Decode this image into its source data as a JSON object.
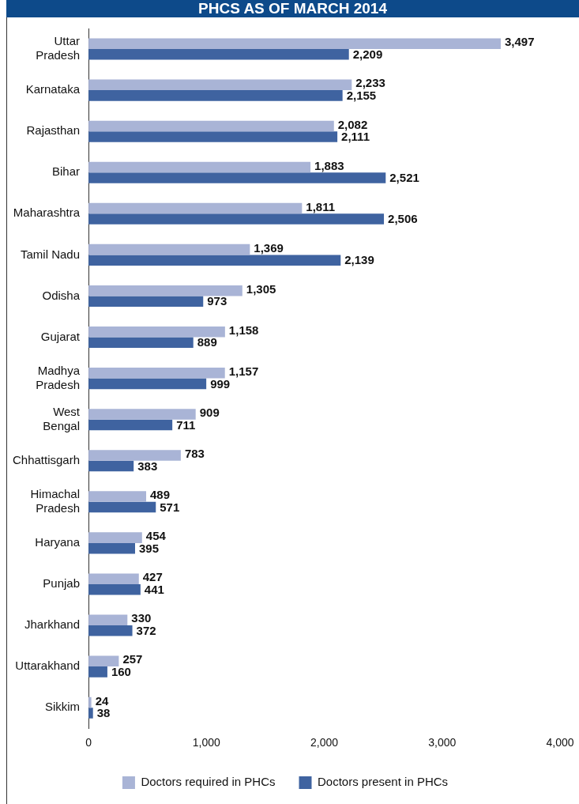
{
  "chart_data": {
    "type": "bar",
    "orientation": "horizontal",
    "title": "PHCS AS OF MARCH 2014",
    "categories": [
      "Uttar Pradesh",
      "Karnataka",
      "Rajasthan",
      "Bihar",
      "Maharashtra",
      "Tamil Nadu",
      "Odisha",
      "Gujarat",
      "Madhya Pradesh",
      "West Bengal",
      "Chhattisgarh",
      "Himachal Pradesh",
      "Haryana",
      "Punjab",
      "Jharkhand",
      "Uttarakhand",
      "Sikkim"
    ],
    "series": [
      {
        "name": "Doctors required in PHCs",
        "color": "#a9b4d6",
        "values": [
          3497,
          2233,
          2082,
          1883,
          1811,
          1369,
          1305,
          1158,
          1157,
          909,
          783,
          489,
          454,
          427,
          330,
          257,
          24
        ],
        "value_labels": [
          "3,497",
          "2,233",
          "2,082",
          "1,883",
          "1,811",
          "1,369",
          "1,305",
          "1,158",
          "1,157",
          "909",
          "783",
          "489",
          "454",
          "427",
          "330",
          "257",
          "24"
        ]
      },
      {
        "name": "Doctors present in PHCs",
        "color": "#3f63a0",
        "values": [
          2209,
          2155,
          2111,
          2521,
          2506,
          2139,
          973,
          889,
          999,
          711,
          383,
          571,
          395,
          441,
          372,
          160,
          38
        ],
        "value_labels": [
          "2,209",
          "2,155",
          "2,111",
          "2,521",
          "2,506",
          "2,139",
          "973",
          "889",
          "999",
          "711",
          "383",
          "571",
          "395",
          "441",
          "372",
          "160",
          "38"
        ]
      }
    ],
    "xlim": [
      0,
      4000
    ],
    "xticks": [
      0,
      {
        "value": 1000,
        "label": "1,000"
      },
      {
        "value": 2000,
        "label": "2,000"
      },
      {
        "value": 3000,
        "label": "3,000"
      },
      {
        "value": 4000,
        "label": "4,000"
      }
    ],
    "grid": false,
    "legend": "bottom"
  }
}
